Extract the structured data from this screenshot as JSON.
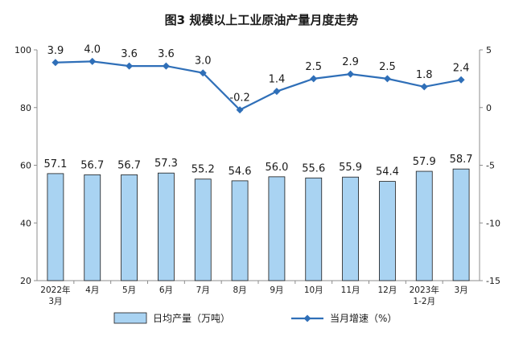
{
  "chart_data": {
    "type": "bar",
    "title": "图3  规模以上工业原油产量月度走势",
    "categories": [
      [
        "2022年",
        "3月"
      ],
      [
        "4月"
      ],
      [
        "5月"
      ],
      [
        "6月"
      ],
      [
        "7月"
      ],
      [
        "8月"
      ],
      [
        "9月"
      ],
      [
        "10月"
      ],
      [
        "11月"
      ],
      [
        "12月"
      ],
      [
        "2023年",
        "1-2月"
      ],
      [
        "3月"
      ]
    ],
    "series": [
      {
        "name": "日均产量（万吨）",
        "type": "bar",
        "axis": "left",
        "values": [
          57.1,
          56.7,
          56.7,
          57.3,
          55.2,
          54.6,
          56.0,
          55.6,
          55.9,
          54.4,
          57.9,
          58.7
        ],
        "labels": [
          "57.1",
          "56.7",
          "56.7",
          "57.3",
          "55.2",
          "54.6",
          "56.0",
          "55.6",
          "55.9",
          "54.4",
          "57.9",
          "58.7"
        ]
      },
      {
        "name": "当月增速（%）",
        "type": "line",
        "axis": "right",
        "values": [
          3.9,
          4.0,
          3.6,
          3.6,
          3.0,
          -0.2,
          1.4,
          2.5,
          2.9,
          2.5,
          1.8,
          2.4
        ],
        "labels": [
          "3.9",
          "4.0",
          "3.6",
          "3.6",
          "3.0",
          "-0.2",
          "1.4",
          "2.5",
          "2.9",
          "2.5",
          "1.8",
          "2.4"
        ]
      }
    ],
    "y_left": {
      "min": 20,
      "max": 100,
      "ticks": [
        "20",
        "40",
        "60",
        "80",
        "100"
      ]
    },
    "y_right": {
      "min": -15,
      "max": 5,
      "ticks": [
        "-15",
        "-10",
        "-5",
        "0",
        "5"
      ]
    },
    "grid": false,
    "legend_position": "bottom",
    "colors": {
      "bar_fill": "#a9d3f2",
      "bar_stroke": "#1a1a1a",
      "line": "#2f6fb8",
      "text": "#1a1a1a",
      "axis": "#8c8c8c"
    }
  }
}
